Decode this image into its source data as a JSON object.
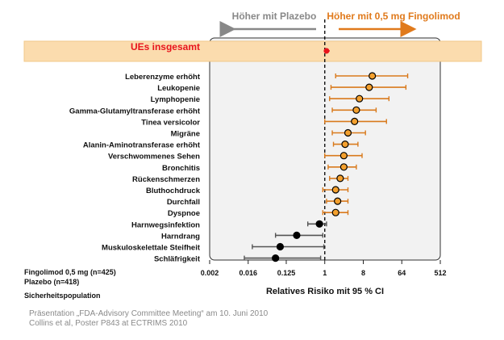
{
  "chart_data": {
    "type": "forest",
    "xlabel": "Relatives Risiko mit 95 % CI",
    "scale": "log2",
    "xlim": [
      0.002,
      512
    ],
    "xticks": [
      "0.002",
      "0.016",
      "0.125",
      "1",
      "8",
      "64",
      "512"
    ],
    "xtick_values": [
      0.002,
      0.016,
      0.125,
      1,
      8,
      64,
      512
    ],
    "reference_line": 1,
    "header_left": "Höher mit Plazebo",
    "header_right": "Höher mit 0,5 mg Fingolimod",
    "overall": {
      "label": "UEs insgesamt",
      "estimate": 1.1,
      "low": 0.95,
      "high": 1.3
    },
    "rows": [
      {
        "label": "Leberenzyme erhöht",
        "estimate": 13,
        "low": 1.8,
        "high": 88
      },
      {
        "label": "Leukopenie",
        "estimate": 11,
        "low": 1.4,
        "high": 80
      },
      {
        "label": "Lymphopenie",
        "estimate": 6.5,
        "low": 1.3,
        "high": 32
      },
      {
        "label": "Gamma-Glutamyltransferase erhöht",
        "estimate": 5.5,
        "low": 1.5,
        "high": 16
      },
      {
        "label": "Tinea versicolor",
        "estimate": 5,
        "low": 1.0,
        "high": 28
      },
      {
        "label": "Migräne",
        "estimate": 3.5,
        "low": 1.5,
        "high": 9
      },
      {
        "label": "Alanin-Aminotransferase erhöht",
        "estimate": 3,
        "low": 1.6,
        "high": 6
      },
      {
        "label": "Verschwommenes Sehen",
        "estimate": 2.8,
        "low": 1.0,
        "high": 7.5
      },
      {
        "label": "Bronchitis",
        "estimate": 2.8,
        "low": 1.2,
        "high": 5.5
      },
      {
        "label": "Rückenschmerzen",
        "estimate": 2.3,
        "low": 1.3,
        "high": 3.5
      },
      {
        "label": "Bluthochdruck",
        "estimate": 1.8,
        "low": 0.9,
        "high": 3.5
      },
      {
        "label": "Durchfall",
        "estimate": 2.0,
        "low": 1.1,
        "high": 3.5
      },
      {
        "label": "Dyspnoe",
        "estimate": 1.8,
        "low": 0.9,
        "high": 3.5
      },
      {
        "label": "Harnwegsinfektion",
        "estimate": 0.75,
        "low": 0.4,
        "high": 1.1
      },
      {
        "label": "Harndrang",
        "estimate": 0.22,
        "low": 0.07,
        "high": 0.9
      },
      {
        "label": "Muskuloskelettale Steifheit",
        "estimate": 0.09,
        "low": 0.02,
        "high": 0.95
      },
      {
        "label": "Schläfrigkeit",
        "estimate": 0.07,
        "low": 0.013,
        "high": 0.8
      }
    ],
    "colors": {
      "overall": "#e8141c",
      "higher_fingolimod": "#d97a1c",
      "higher_placebo": "#555555",
      "marker_fill_fingolimod": "#f3a02e",
      "marker_fill_placebo": "#000000",
      "highlight_band": "#fbdcae",
      "plot_background": "#f2f2f2",
      "header_left": "#888888",
      "header_right": "#e07a1c"
    }
  },
  "footnotes": {
    "fingolimod_n": "Fingolimod 0,5 mg (n=425)",
    "placebo_n": "Plazebo (n=418)",
    "population": "Sicherheitspopulation"
  },
  "sources": {
    "line1": "Präsentation „FDA-Advisory Committee Meeting“ am 10. Juni 2010",
    "line2": "Collins et al, Poster P843 at ECTRIMS 2010"
  }
}
